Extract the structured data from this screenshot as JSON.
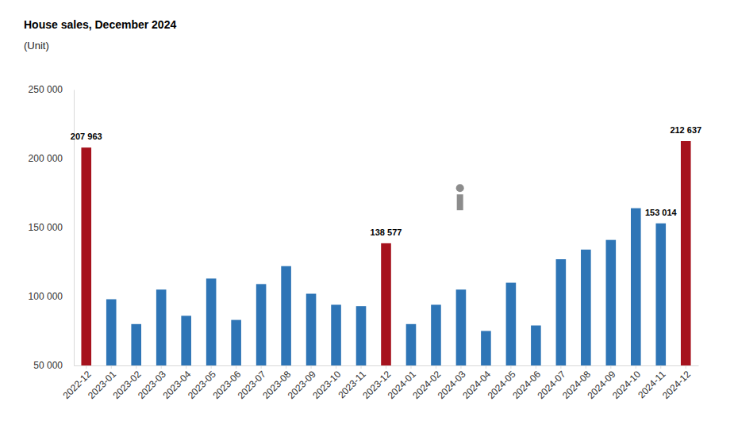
{
  "chart_data": {
    "type": "bar",
    "title": "House sales, December 2024",
    "subtitle": "(Unit)",
    "categories": [
      "2022-12",
      "2023-01",
      "2023-02",
      "2023-03",
      "2023-04",
      "2023-05",
      "2023-06",
      "2023-07",
      "2023-08",
      "2023-09",
      "2023-10",
      "2023-11",
      "2023-12",
      "2024-01",
      "2024-02",
      "2024-03",
      "2024-04",
      "2024-05",
      "2024-06",
      "2024-07",
      "2024-08",
      "2024-09",
      "2024-10",
      "2024-11",
      "2024-12"
    ],
    "values": [
      207963,
      98000,
      80000,
      105000,
      86000,
      113000,
      83000,
      109000,
      122000,
      102000,
      94000,
      93000,
      138577,
      80000,
      94000,
      105000,
      75000,
      110000,
      79000,
      127000,
      134000,
      141000,
      164000,
      153014,
      212637
    ],
    "value_labels": [
      "207 963",
      null,
      null,
      null,
      null,
      null,
      null,
      null,
      null,
      null,
      null,
      null,
      "138 577",
      null,
      null,
      null,
      null,
      null,
      null,
      null,
      null,
      null,
      null,
      "153 014",
      "212 637"
    ],
    "colors": [
      "#a6121d",
      "#2e75b6",
      "#2e75b6",
      "#2e75b6",
      "#2e75b6",
      "#2e75b6",
      "#2e75b6",
      "#2e75b6",
      "#2e75b6",
      "#2e75b6",
      "#2e75b6",
      "#2e75b6",
      "#a6121d",
      "#2e75b6",
      "#2e75b6",
      "#2e75b6",
      "#2e75b6",
      "#2e75b6",
      "#2e75b6",
      "#2e75b6",
      "#2e75b6",
      "#2e75b6",
      "#2e75b6",
      "#2e75b6",
      "#a6121d"
    ],
    "ylim": [
      50000,
      250000
    ],
    "yticks": [
      {
        "value": 50000,
        "label": "50 000"
      },
      {
        "value": 100000,
        "label": "100 000"
      },
      {
        "value": 150000,
        "label": "150 000"
      },
      {
        "value": 200000,
        "label": "200 000"
      },
      {
        "value": 250000,
        "label": "250 000"
      }
    ],
    "grid": false,
    "data_labels": true
  }
}
